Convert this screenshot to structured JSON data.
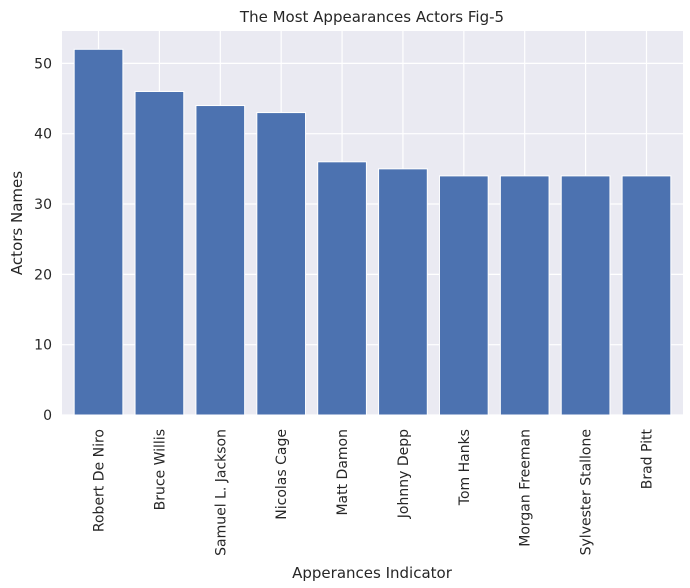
{
  "chart_data": {
    "type": "bar",
    "title": "The Most Appearances Actors Fig-5",
    "xlabel": "Apperances Indicator",
    "ylabel": "Actors Names",
    "categories": [
      "Robert De Niro",
      "Bruce Willis",
      "Samuel L. Jackson",
      "Nicolas Cage",
      "Matt Damon",
      "Johnny Depp",
      "Tom Hanks",
      "Morgan Freeman",
      "Sylvester Stallone",
      "Brad Pitt"
    ],
    "values": [
      52,
      46,
      44,
      43,
      36,
      35,
      34,
      34,
      34,
      34
    ],
    "ylim": [
      0,
      54.6
    ],
    "yticks": [
      0,
      10,
      20,
      30,
      40,
      50
    ],
    "grid": true,
    "colors": {
      "bar": "#4c72b0",
      "plot_background": "#eaeaf2",
      "grid": "#ffffff",
      "text": "#262626"
    }
  }
}
